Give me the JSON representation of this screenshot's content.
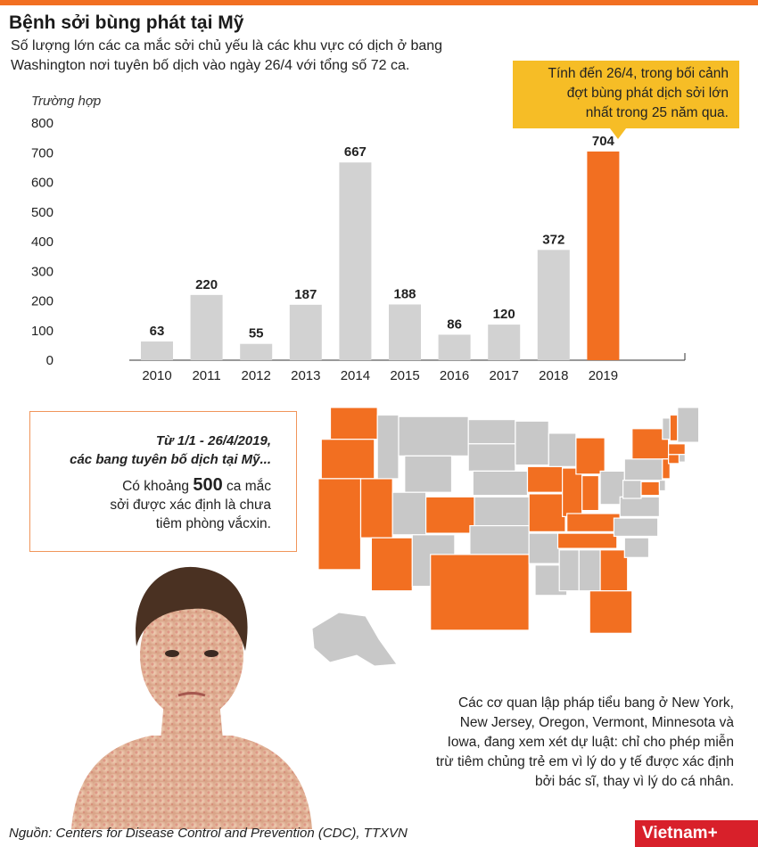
{
  "header": {
    "title": "Bệnh sởi bùng phát tại Mỹ",
    "subtitle_line1": "Số lượng lớn các ca mắc sởi chủ yếu là các khu vực có dịch ở bang",
    "subtitle_line2": "Washington nơi tuyên bố dịch vào ngày 26/4 với tổng số 72 ca."
  },
  "callout": {
    "line1": "Tính đến 26/4, trong bối cảnh",
    "line2": "đợt bùng phát dịch sởi lớn",
    "line3": "nhất trong 25 năm qua."
  },
  "chart_data": {
    "type": "bar",
    "ylabel": "Trường hợp",
    "ylim": [
      0,
      800
    ],
    "yticks": [
      "0",
      "100",
      "200",
      "300",
      "400",
      "500",
      "600",
      "700",
      "800"
    ],
    "categories": [
      "2010",
      "2011",
      "2012",
      "2013",
      "2014",
      "2015",
      "2016",
      "2017",
      "2018",
      "2019"
    ],
    "values": [
      63,
      220,
      55,
      187,
      667,
      188,
      86,
      120,
      372,
      704
    ],
    "data_labels": [
      "63",
      "220",
      "55",
      "187",
      "667",
      "188",
      "86",
      "120",
      "372",
      "704"
    ],
    "bar_color": "#d2d2d2",
    "highlight_color": "#f26f21",
    "highlight_index": 9,
    "grid": false
  },
  "infobox": {
    "head_line1": "Từ 1/1 - 26/4/2019,",
    "head_line2": "các bang tuyên bố dịch tại Mỹ...",
    "body_pre": "Có khoảng ",
    "body_big": "500",
    "body_post": " ca mắc",
    "body_line2": "sởi được xác định là chưa",
    "body_line3": "tiêm phòng vắcxin."
  },
  "map": {
    "outbreak_color": "#f26f21",
    "other_color": "#c8c8c8",
    "outbreak_states": [
      "Washington",
      "Oregon",
      "California",
      "Nevada",
      "Arizona",
      "Colorado",
      "Texas",
      "Iowa",
      "Missouri",
      "Illinois",
      "Indiana",
      "Michigan",
      "Kentucky",
      "Tennessee",
      "Georgia",
      "Florida",
      "New York",
      "New Jersey",
      "Maryland",
      "Connecticut",
      "Massachusetts",
      "New Hampshire"
    ]
  },
  "note": {
    "line1": "Các cơ quan lập pháp tiểu bang ở New York,",
    "line2": "New Jersey, Oregon, Vermont, Minnesota và",
    "line3": "Iowa, đang xem xét dự luật: chỉ cho phép miễn",
    "line4": "trừ tiêm chủng trẻ em vì lý do y tế được xác định",
    "line5": "bởi bác sĩ, thay vì lý do cá nhân."
  },
  "footer": {
    "source": "Nguồn:  Centers for Disease Control and Prevention (CDC), TTXVN",
    "logo": "Vietnam+"
  }
}
